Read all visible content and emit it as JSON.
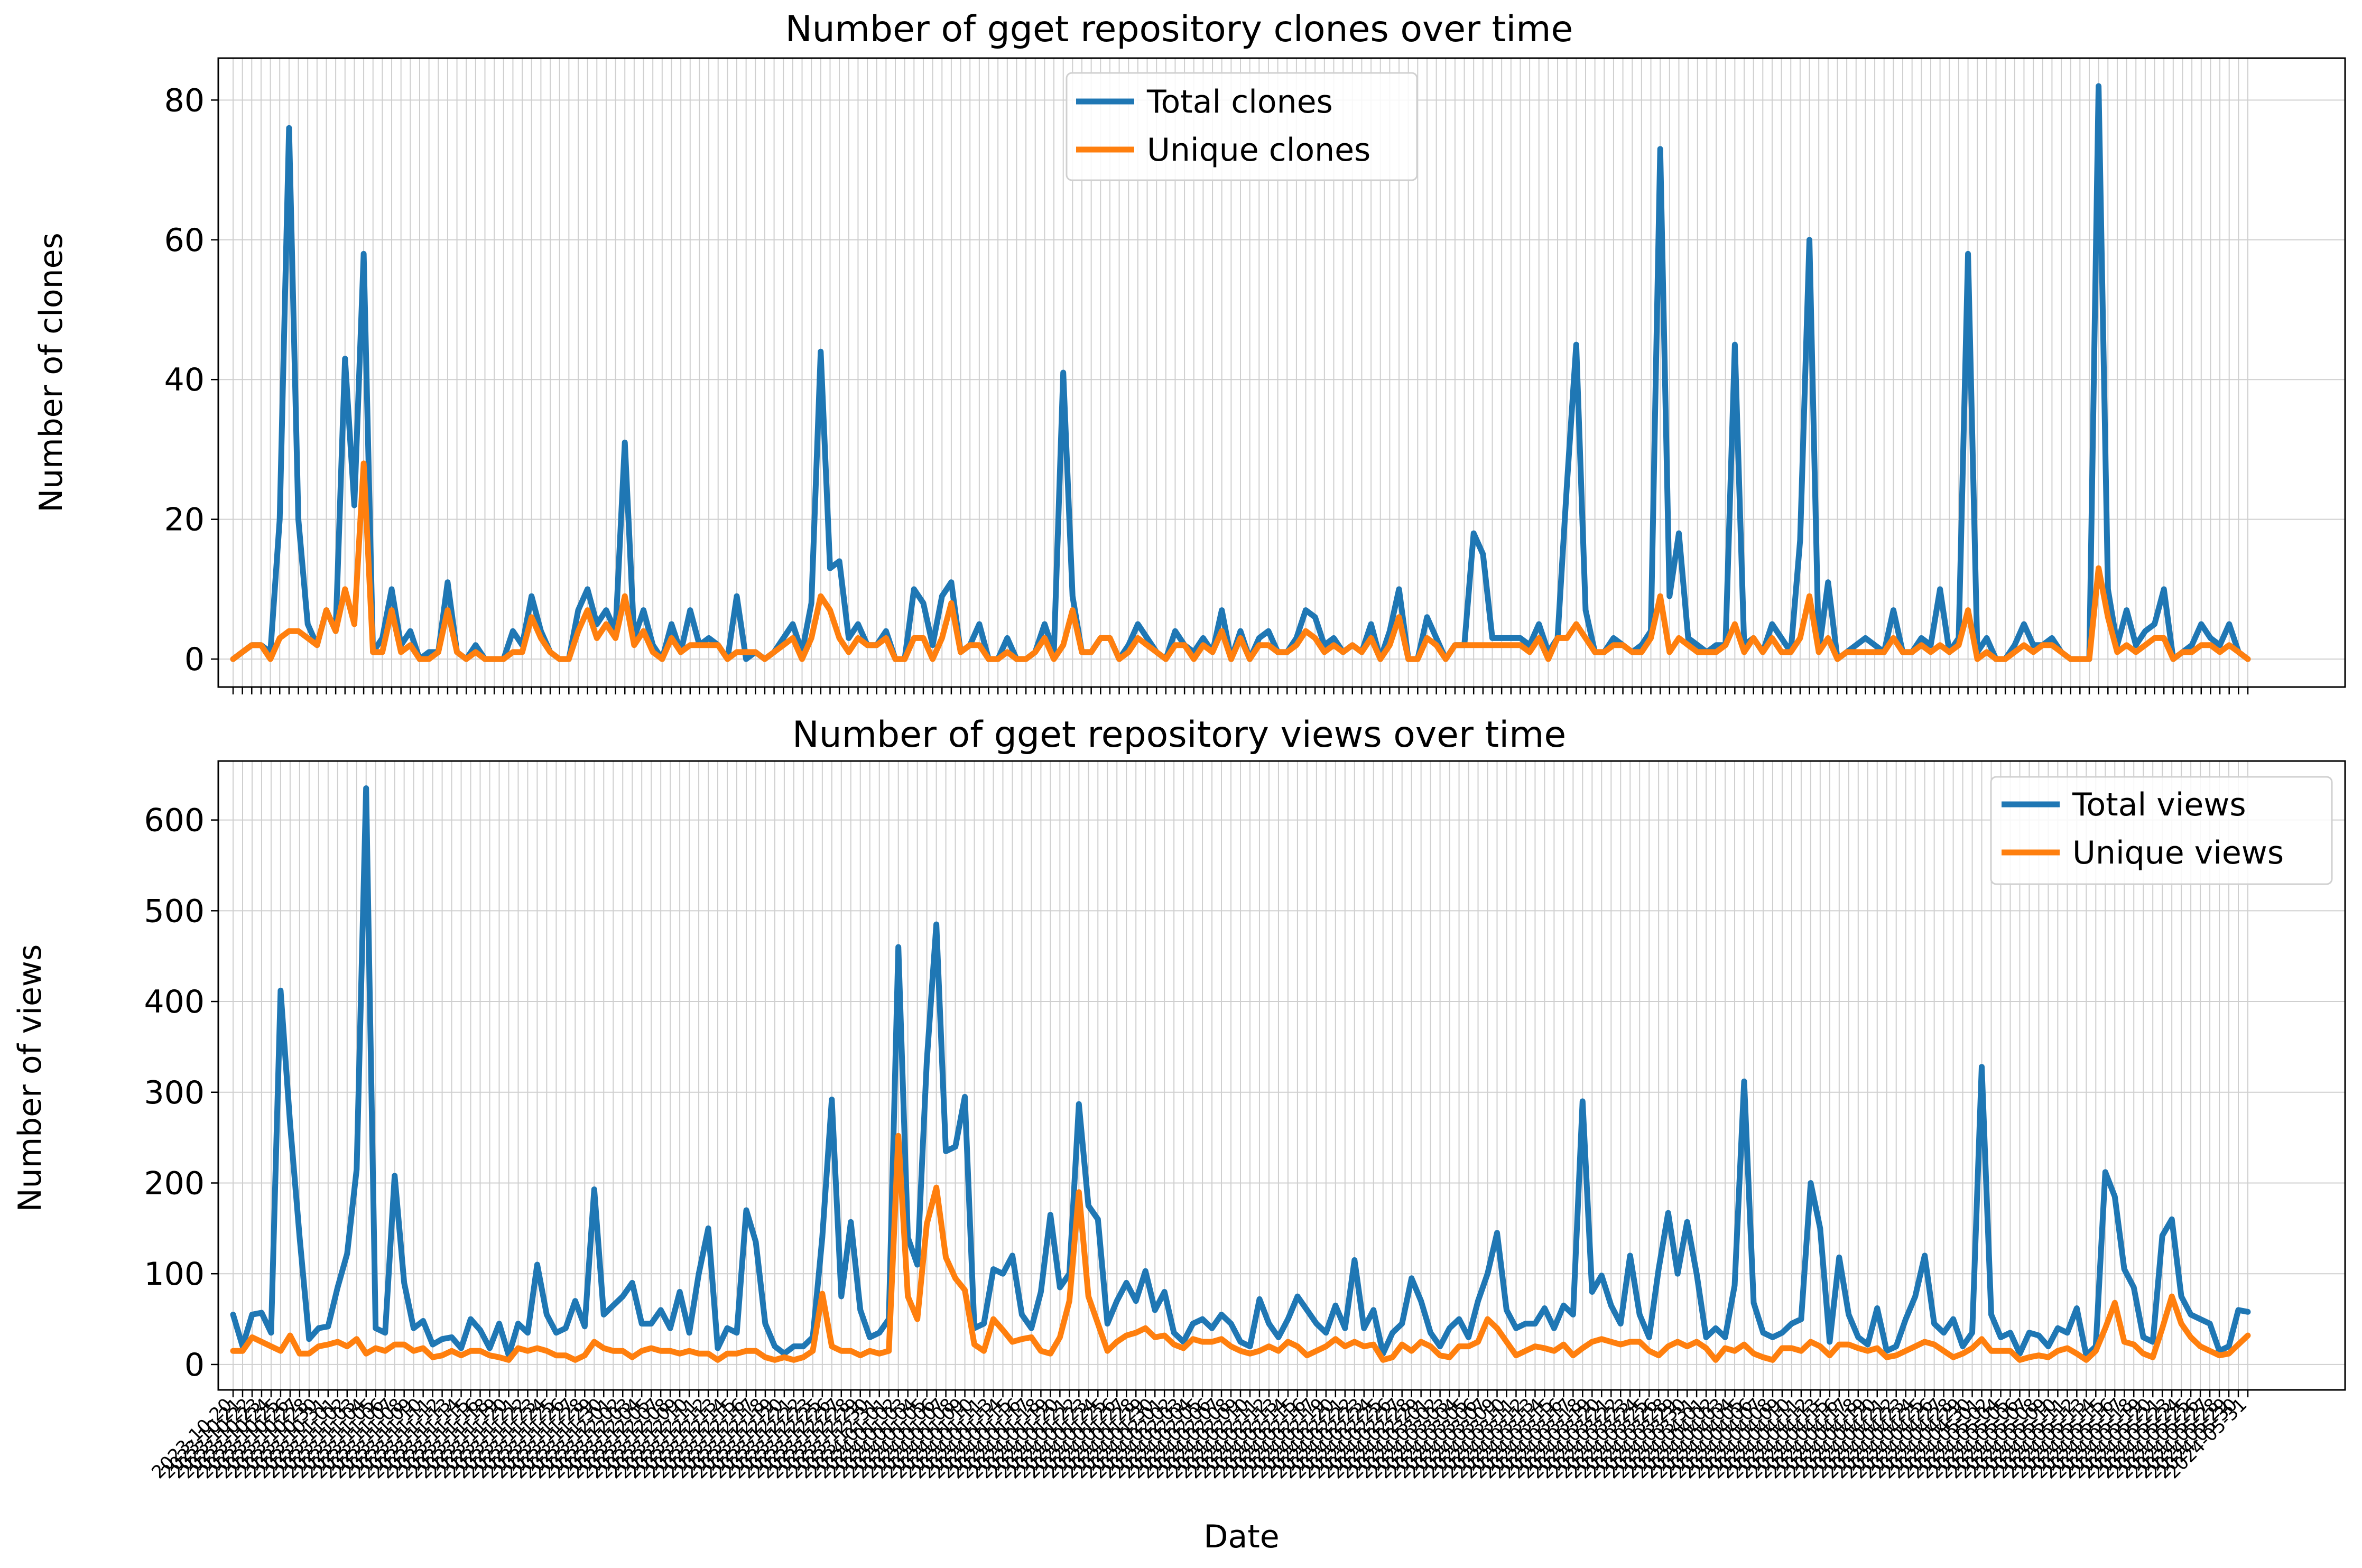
{
  "chart_data": [
    {
      "type": "line",
      "title": "Number of gget repository clones over time",
      "xlabel": "",
      "ylabel": "Number of clones",
      "ylim": [
        -4,
        86
      ],
      "yticks": [
        0,
        20,
        40,
        60,
        80
      ],
      "grid": true,
      "legend_position": "top-center",
      "series": [
        {
          "name": "Total clones",
          "color": "#1f77b4",
          "values": [
            0,
            1,
            2,
            2,
            1,
            20,
            76,
            20,
            5,
            2,
            7,
            4,
            43,
            22,
            58,
            1,
            3,
            10,
            2,
            4,
            0,
            1,
            1,
            11,
            1,
            0,
            2,
            0,
            0,
            0,
            4,
            2,
            9,
            4,
            1,
            0,
            0,
            7,
            10,
            5,
            7,
            4,
            31,
            3,
            7,
            2,
            0,
            5,
            1,
            7,
            2,
            3,
            2,
            0,
            9,
            0,
            1,
            0,
            1,
            3,
            5,
            1,
            8,
            44,
            13,
            14,
            3,
            5,
            2,
            2,
            4,
            0,
            0,
            10,
            8,
            2,
            9,
            11,
            1,
            2,
            5,
            0,
            0,
            3,
            0,
            0,
            1,
            5,
            1,
            41,
            9,
            1,
            1,
            3,
            3,
            0,
            2,
            5,
            3,
            1,
            0,
            4,
            2,
            1,
            3,
            1,
            7,
            0,
            4,
            0,
            3,
            4,
            1,
            1,
            3,
            7,
            6,
            2,
            3,
            1,
            2,
            1,
            5,
            0,
            4,
            10,
            0,
            0,
            6,
            3,
            0,
            2,
            2,
            18,
            15,
            3,
            3,
            3,
            3,
            2,
            5,
            1,
            3,
            25,
            45,
            7,
            1,
            1,
            3,
            2,
            1,
            2,
            4,
            73,
            9,
            18,
            3,
            2,
            1,
            2,
            2,
            45,
            2,
            3,
            1,
            5,
            3,
            1,
            17,
            60,
            1,
            11,
            0,
            1,
            2,
            3,
            2,
            1,
            7,
            1,
            1,
            3,
            2,
            10,
            1,
            3,
            58,
            1,
            3,
            0,
            0,
            2,
            5,
            2,
            2,
            3,
            1,
            0,
            0,
            0,
            82,
            10,
            2,
            7,
            2,
            4,
            5,
            10,
            0,
            1,
            2,
            5,
            3,
            2,
            5,
            1,
            0
          ]
        },
        {
          "name": "Unique clones",
          "color": "#ff7f0e",
          "values": [
            0,
            1,
            2,
            2,
            0,
            3,
            4,
            4,
            3,
            2,
            7,
            4,
            10,
            5,
            28,
            1,
            1,
            7,
            1,
            2,
            0,
            0,
            1,
            7,
            1,
            0,
            1,
            0,
            0,
            0,
            1,
            1,
            6,
            3,
            1,
            0,
            0,
            4,
            7,
            3,
            5,
            3,
            9,
            2,
            4,
            1,
            0,
            3,
            1,
            2,
            2,
            2,
            2,
            0,
            1,
            1,
            1,
            0,
            1,
            2,
            3,
            0,
            3,
            9,
            7,
            3,
            1,
            3,
            2,
            2,
            3,
            0,
            0,
            3,
            3,
            0,
            3,
            8,
            1,
            2,
            2,
            0,
            0,
            1,
            0,
            0,
            1,
            3,
            0,
            2,
            7,
            1,
            1,
            3,
            3,
            0,
            1,
            3,
            2,
            1,
            0,
            2,
            2,
            0,
            2,
            1,
            4,
            0,
            3,
            0,
            2,
            2,
            1,
            1,
            2,
            4,
            3,
            1,
            2,
            1,
            2,
            1,
            3,
            0,
            2,
            6,
            0,
            0,
            3,
            2,
            0,
            2,
            2,
            2,
            2,
            2,
            2,
            2,
            2,
            1,
            3,
            0,
            3,
            3,
            5,
            3,
            1,
            1,
            2,
            2,
            1,
            1,
            3,
            9,
            1,
            3,
            2,
            1,
            1,
            1,
            2,
            5,
            1,
            3,
            1,
            3,
            1,
            1,
            3,
            9,
            1,
            3,
            0,
            1,
            1,
            1,
            1,
            1,
            3,
            1,
            1,
            2,
            1,
            2,
            1,
            2,
            7,
            0,
            1,
            0,
            0,
            1,
            2,
            1,
            2,
            2,
            1,
            0,
            0,
            0,
            13,
            6,
            1,
            2,
            1,
            2,
            3,
            3,
            0,
            1,
            1,
            2,
            2,
            1,
            2,
            1,
            0
          ]
        }
      ],
      "x_dates_first": "2023-10-20",
      "x_dates_last": "2024-05-31"
    },
    {
      "type": "line",
      "title": "Number of gget repository views over time",
      "xlabel": "Date",
      "ylabel": "Number of views",
      "ylim": [
        -28,
        665
      ],
      "yticks": [
        0,
        100,
        200,
        300,
        400,
        500,
        600
      ],
      "grid": true,
      "legend_position": "top-right",
      "series": [
        {
          "name": "Total views",
          "color": "#1f77b4",
          "values": [
            55,
            20,
            55,
            57,
            35,
            412,
            265,
            140,
            28,
            40,
            42,
            85,
            122,
            215,
            635,
            40,
            35,
            208,
            90,
            40,
            48,
            22,
            28,
            30,
            18,
            50,
            38,
            18,
            45,
            10,
            45,
            35,
            110,
            55,
            35,
            40,
            70,
            42,
            193,
            55,
            65,
            75,
            90,
            45,
            45,
            60,
            40,
            80,
            35,
            100,
            150,
            18,
            40,
            35,
            170,
            135,
            45,
            20,
            12,
            20,
            20,
            30,
            140,
            292,
            75,
            157,
            60,
            30,
            35,
            50,
            460,
            140,
            110,
            335,
            485,
            235,
            240,
            295,
            40,
            45,
            105,
            100,
            120,
            55,
            40,
            80,
            165,
            85,
            100,
            287,
            175,
            160,
            45,
            70,
            90,
            70,
            103,
            60,
            80,
            35,
            25,
            45,
            50,
            40,
            55,
            45,
            25,
            20,
            72,
            45,
            30,
            50,
            75,
            60,
            45,
            35,
            65,
            40,
            115,
            40,
            60,
            12,
            35,
            45,
            95,
            70,
            35,
            20,
            40,
            50,
            30,
            70,
            100,
            145,
            60,
            40,
            45,
            45,
            62,
            40,
            65,
            55,
            290,
            80,
            98,
            65,
            45,
            120,
            55,
            30,
            105,
            167,
            100,
            157,
            100,
            30,
            40,
            30,
            87,
            312,
            68,
            35,
            30,
            35,
            45,
            50,
            200,
            150,
            25,
            118,
            55,
            30,
            22,
            62,
            15,
            20,
            50,
            75,
            120,
            45,
            35,
            50,
            20,
            35,
            328,
            55,
            30,
            35,
            12,
            35,
            32,
            20,
            40,
            35,
            62,
            10,
            20,
            212,
            185,
            105,
            85,
            30,
            25,
            142,
            160,
            75,
            55,
            50,
            45,
            15,
            20,
            60,
            58
          ]
        },
        {
          "name": "Unique views",
          "color": "#ff7f0e",
          "values": [
            15,
            15,
            30,
            25,
            20,
            15,
            32,
            12,
            12,
            20,
            22,
            25,
            20,
            28,
            12,
            18,
            15,
            22,
            22,
            15,
            18,
            8,
            10,
            15,
            10,
            15,
            15,
            10,
            8,
            5,
            18,
            15,
            18,
            15,
            10,
            10,
            5,
            10,
            25,
            18,
            15,
            15,
            8,
            15,
            18,
            15,
            15,
            12,
            15,
            12,
            12,
            5,
            12,
            12,
            15,
            15,
            8,
            5,
            8,
            5,
            8,
            15,
            78,
            20,
            15,
            15,
            10,
            15,
            12,
            15,
            252,
            75,
            50,
            155,
            195,
            118,
            95,
            82,
            22,
            15,
            50,
            38,
            25,
            28,
            30,
            15,
            12,
            30,
            70,
            190,
            75,
            45,
            15,
            25,
            32,
            35,
            40,
            30,
            32,
            22,
            18,
            28,
            25,
            25,
            28,
            20,
            15,
            12,
            15,
            20,
            15,
            25,
            20,
            10,
            15,
            20,
            28,
            20,
            25,
            20,
            22,
            5,
            8,
            22,
            15,
            25,
            20,
            10,
            8,
            20,
            20,
            25,
            50,
            40,
            25,
            10,
            15,
            20,
            18,
            15,
            22,
            10,
            18,
            25,
            28,
            25,
            22,
            25,
            25,
            15,
            10,
            20,
            25,
            20,
            25,
            18,
            5,
            18,
            15,
            22,
            12,
            8,
            5,
            18,
            18,
            15,
            25,
            20,
            10,
            22,
            22,
            18,
            15,
            18,
            8,
            10,
            15,
            20,
            25,
            22,
            15,
            8,
            12,
            18,
            28,
            15,
            15,
            15,
            5,
            8,
            10,
            8,
            15,
            18,
            12,
            5,
            15,
            40,
            68,
            25,
            22,
            12,
            8,
            40,
            75,
            45,
            30,
            20,
            15,
            10,
            12,
            22,
            32
          ]
        }
      ],
      "x_dates_first": "2023-10-20",
      "x_dates_last": "2024-05-31"
    }
  ]
}
